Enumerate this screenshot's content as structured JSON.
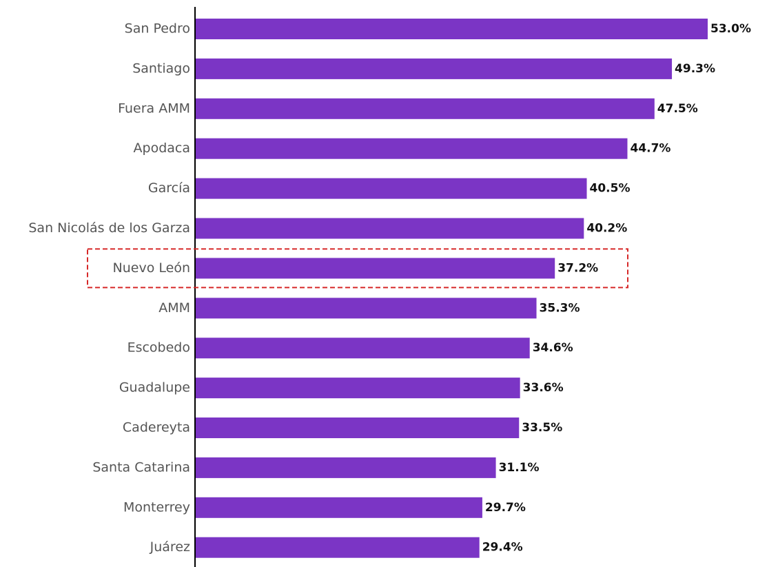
{
  "chart_data": {
    "type": "bar",
    "orientation": "horizontal",
    "categories": [
      "San Pedro",
      "Santiago",
      "Fuera AMM",
      "Apodaca",
      "García",
      "San Nicolás de los Garza",
      "Nuevo León",
      "AMM",
      "Escobedo",
      "Guadalupe",
      "Cadereyta",
      "Santa Catarina",
      "Monterrey",
      "Juárez"
    ],
    "values": [
      53.0,
      49.3,
      47.5,
      44.7,
      40.5,
      40.2,
      37.2,
      35.3,
      34.6,
      33.6,
      33.5,
      31.1,
      29.7,
      29.4
    ],
    "value_labels": [
      "53.0%",
      "49.3%",
      "47.5%",
      "44.7%",
      "40.5%",
      "40.2%",
      "37.2%",
      "35.3%",
      "34.6%",
      "33.6%",
      "33.5%",
      "31.1%",
      "29.7%",
      "29.4%"
    ],
    "color": "#7b35c5",
    "highlight": "Nuevo León",
    "highlight_color": "#d62828"
  }
}
